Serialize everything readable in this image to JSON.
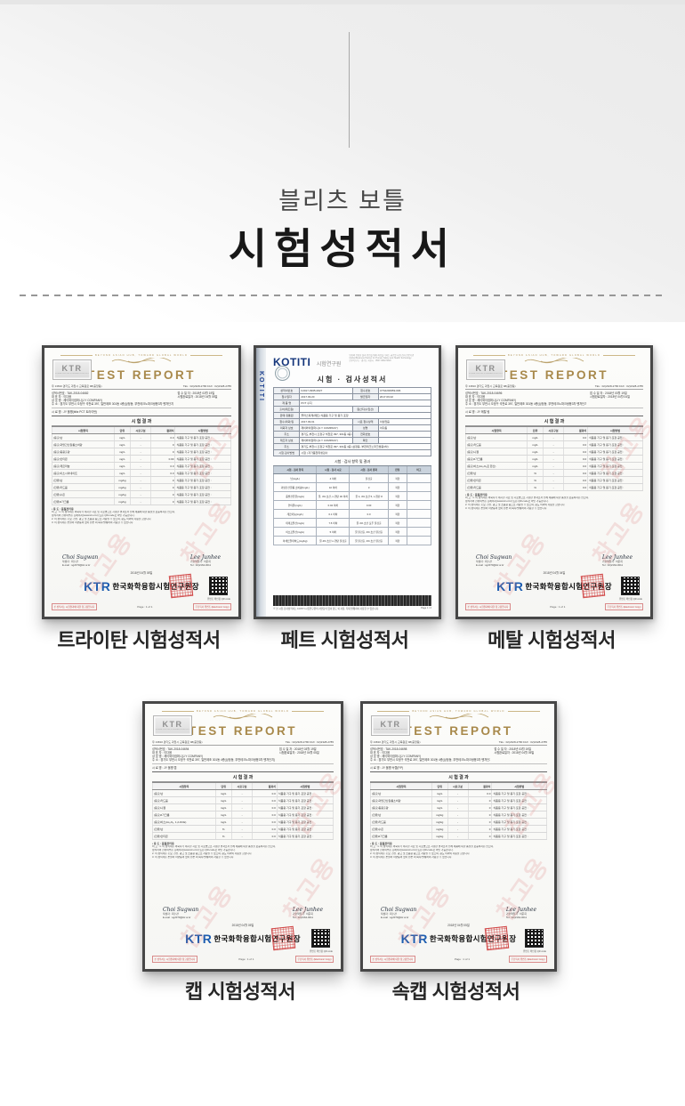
{
  "hero": {
    "subtitle": "블리츠 보틀",
    "title": "시험성적서"
  },
  "captions": {
    "tritan": "트라이탄 시험성적서",
    "pet": "페트 시험성적서",
    "metal": "메탈 시험성적서",
    "cap": "캡 시험성적서",
    "inner": "속캡 시험성적서"
  },
  "icons": {
    "qr": "qr-code",
    "red_stamp": "red-square-seal",
    "round_seal": "round-institute-seal"
  },
  "colors": {
    "gold": "#a8894b",
    "ktr_blue": "#1d5db0",
    "kotiti_navy": "#15367b",
    "stamp_red": "#ce3838",
    "watermark_red": "rgba(222,120,120,0.20)"
  },
  "ktr_common": {
    "tagline": "BEYOND ASIAN HUB, TOWARD GLOBAL WORLD",
    "logo": "KTR",
    "logo_sub": "KOREA TESTING & RESEARCH INSTITUTE",
    "report_title": "TEST REPORT",
    "watermark": "참고용",
    "table_title": "시 험 결 과",
    "columns": [
      "시험항목",
      "단위",
      "시료구분",
      "결과치",
      "시험방법"
    ],
    "notes_title": "• 용 도 : 품질관리용",
    "notes": [
      "비 고 : 1. 이 성적서는 의뢰자가 제시한 시료 및 시료명으로 시험한 결과로서 전체 제품에 대한 품질을 보증하지는 않으며,",
      "성적서의 진위여부는 홈페이지(www.ktr.or.kr) 또는 QR-code로 확인 가능합니다.",
      "2. 이 성적서는 홍보, 선전, 광고 및 소송용 등으로 사용될 수 없으며, 용도 이외의 사용을 금합니다.",
      "3. 이 성적서는 본원의 서면동의 없이 원본 외 복사/발췌하여 사용할 수 없습니다."
    ],
    "sign_left_script": "Choi Sugwan",
    "sign_left_name": "작성자 : 최수관",
    "sign_left_mail": "E-mail : sg2070@ktr.or.kr",
    "sign_right_script": "Lee Junhee",
    "sign_right_name": "기술책임자 : 이준희",
    "sign_right_tel": "Tel : 02)2164-0011",
    "org_logo": "KTR",
    "org_title": "한국화학융합시험연구원장",
    "qr_caption": "위변조 확인용  QR code",
    "footer_left": "본 성적서는 시험결과에 대한 참고용입니다",
    "footer_right": "무단복사 위변조 (Electronic Copy)",
    "page": "Page : 1 of 1"
  },
  "certs": {
    "tritan": {
      "addr": "우 13810 경기도 과천시 교육원로 98(중앙동)",
      "tel": "TEL : 02)2328-2780   FAX : 02)2328-2785",
      "fields_left": [
        "성적서번호 : TAK-2018-04682",
        "대 표 자 : 이다음",
        "상 호 명 : 제이와이컴퍼니(J.Y COMPANY)",
        "주       소 : 경기도 부천시 오정구 석천로 397, 일반제조 301동 4층(삼정동, 부천테크노파크쌍용3차 벤처단지)"
      ],
      "fields_right": [
        "접 수 일 자 : 2018년 03월 19일",
        "시험완료일자 : 2018년 04월 05일"
      ],
      "sample": "시 료 명 : JY 물병(blitz PCT 트라이탄)",
      "date": "2018년 04월 05일",
      "rows": [
        [
          "(용출)납",
          "mg/L",
          "-",
          "0.0",
          "식품용 기구 및 용기·포장 공전 :"
        ],
        [
          "(용출)과망간산칼륨소비량",
          "mg/L",
          "-",
          "0",
          "식품용 기구 및 용기·포장 공전 :"
        ],
        [
          "(용출)총용출량",
          "mg/L",
          "-",
          "0",
          "식품용 기구 및 용기·포장 공전 :"
        ],
        [
          "(용출)안티몬",
          "mg/L",
          "-",
          "0.00",
          "식품용 기구 및 용기·포장 공전 :"
        ],
        [
          "(용출)게르마늄",
          "mg/L",
          "-",
          "0.0",
          "식품용 기구 및 용기·포장 공전 :"
        ],
        [
          "(용출)이소시아네이트",
          "mg/L",
          "-",
          "0.0",
          "식품용 기구 및 용기·포장 공전 :"
        ],
        [
          "(잔류)납",
          "mg/kg",
          "-",
          "0",
          "식품용 기구 및 용기·포장 공전 :"
        ],
        [
          "(잔류)카드뮴",
          "mg/kg",
          "-",
          "0",
          "식품용 기구 및 용기·포장 공전 :"
        ],
        [
          "(잔류)수은",
          "mg/kg",
          "-",
          "0",
          "식품용 기구 및 용기·포장 공전 :"
        ],
        [
          "(잔류)6가크롬",
          "mg/kg",
          "-",
          "0",
          "식품용 기구 및 용기·포장 공전 :"
        ]
      ]
    },
    "metal": {
      "addr": "우 13810 경기도 과천시 교육원로 98(중앙동)",
      "tel": "TEL : 02)2328-2780   FAX : 02)2328-2785",
      "fields_left": [
        "성적서번호 : TAK-2018-04696",
        "대 표 자 : 이다음",
        "상 호 명 : 제이와이컴퍼니(J.Y COMPANY)",
        "주       소 : 경기도 부천시 오정구 석천로 397, 일반제조 301동 4층(삼정동, 부천테크노파크쌍용3차 벤처단지)"
      ],
      "fields_right": [
        "접 수 일 자 : 2018년 03월 19일",
        "시험완료일자 : 2018년 04월 04일"
      ],
      "sample": "시 료 명 : JY 메탈 링",
      "date": "2018년 04월 04일",
      "rows": [
        [
          "(용출)납",
          "mg/L",
          "-",
          "0.0",
          "식품용 기구 및 용기·포장 공전 :"
        ],
        [
          "(용출)카드뮴",
          "mg/L",
          "-",
          "0.0",
          "식품용 기구 및 용기·포장 공전 :"
        ],
        [
          "(용출)니켈",
          "mg/L",
          "-",
          "0.0",
          "식품용 기구 및 용기·포장 공전 :"
        ],
        [
          "(용출)6가크롬",
          "mg/L",
          "-",
          "0.0",
          "식품용 기구 및 용기·포장 공전 :"
        ],
        [
          "(용출)비소(As₂O₃로 환산)",
          "mg/L",
          "-",
          "0.0",
          "식품용 기구 및 용기·포장 공전 :"
        ],
        [
          "(잔류)납",
          "%",
          "-",
          "0.0",
          "식품용 기구 및 용기·포장 공전 :"
        ],
        [
          "(잔류)안티몬",
          "%",
          "-",
          "0.0",
          "식품용 기구 및 용기·포장 공전 :"
        ],
        [
          "(잔류)카드뮴",
          "%",
          "-",
          "0.0",
          "식품용 기구 및 용기·포장 공전 :"
        ]
      ]
    },
    "cap": {
      "addr": "우 13810 경기도 과천시 교육원로 98(중앙동)",
      "tel": "TEL : 02)2328-2780   FAX : 02)2328-2785",
      "fields_left": [
        "성적서번호 : TAK-2018-04694",
        "대 표 자 : 이다음",
        "상 호 명 : 제이와이컴퍼니(J.Y COMPANY)",
        "주       소 : 경기도 부천시 오정구 석천로 397, 일반제조 301동 4층(삼정동, 부천테크노파크쌍용3차 벤처단지)"
      ],
      "fields_right": [
        "접 수 일 자 : 2018년 03월 19일",
        "시험완료일자 : 2018년 04월 05일"
      ],
      "sample": "시 료 명 : JY 물병 캡",
      "date": "2018년 04월 05일",
      "rows": [
        [
          "(용출)납",
          "mg/L",
          "-",
          "0.0",
          "식품용 기구 및 용기·포장 공전 :"
        ],
        [
          "(용출)카드뮴",
          "mg/L",
          "-",
          "0.0",
          "식품용 기구 및 용기·포장 공전 :"
        ],
        [
          "(용출)니켈",
          "mg/L",
          "-",
          "0.0",
          "식품용 기구 및 용기·포장 공전 :"
        ],
        [
          "(용출)6가크롬",
          "mg/L",
          "-",
          "0.0",
          "식품용 기구 및 용기·포장 공전 :"
        ],
        [
          "(용출)비소(As₂O₃, 1,2-DCE)",
          "mg/L",
          "-",
          "0.0",
          "식품용 기구 및 용기·포장 공전 :"
        ],
        [
          "(잔류)납",
          "%",
          "-",
          "0.0",
          "식품용 기구 및 용기·포장 공전 :"
        ],
        [
          "(잔류)안티몬",
          "%",
          "-",
          "0.0",
          "식품용 기구 및 용기·포장 공전 :"
        ]
      ]
    },
    "inner": {
      "addr": "우 13810 경기도 과천시 교육원로 98(중앙동)",
      "tel": "TEL : 02)2328-2780   FAX : 02)2328-2785",
      "fields_left": [
        "성적서번호 : TAK-2018-04698",
        "대 표 자 : 이다음",
        "상 호 명 : 제이와이컴퍼니(J.Y COMPANY)",
        "주       소 : 경기도 부천시 오정구 석천로 397, 일반제조 301동 4층(삼정동, 부천테크노파크쌍용3차 벤처단지)"
      ],
      "fields_right": [
        "접 수 일 자 : 2018년 03월 19일",
        "시험완료일자 : 2018년 04월 05일"
      ],
      "sample": "시 료 명 : JY 물병 속캡(P.P)",
      "date": "2018년 04월 05일",
      "rows": [
        [
          "(용출)납",
          "mg/L",
          "-",
          "0.0",
          "식품용 기구 및 용기·포장 공전 :"
        ],
        [
          "(용출)과망간산칼륨소비량",
          "mg/L",
          "-",
          "0",
          "식품용 기구 및 용기·포장 공전 :"
        ],
        [
          "(용출)총용출량",
          "mg/L",
          "-",
          "0",
          "식품용 기구 및 용기·포장 공전 :"
        ],
        [
          "(잔류)납",
          "mg/kg",
          "-",
          "0",
          "식품용 기구 및 용기·포장 공전 :"
        ],
        [
          "(잔류)카드뮴",
          "mg/kg",
          "-",
          "0",
          "식품용 기구 및 용기·포장 공전 :"
        ],
        [
          "(잔류)수은",
          "mg/kg",
          "-",
          "0",
          "식품용 기구 및 용기·포장 공전 :"
        ],
        [
          "(잔류)6가크롬",
          "mg/kg",
          "-",
          "0",
          "식품용 기구 및 용기·포장 공전 :"
        ]
      ]
    }
  },
  "kotiti": {
    "brand": "KOTITI",
    "brand_suffix": "시험연구원",
    "head_note": [
      "인류의 건강한 삶과 안전을 위해 최선을 다하는 글로벌 시험·검사 전문기관",
      "Global Business Partner for Human Safety and Health Technology",
      "본부/연구소 : 경기도 과천시  ·  0507-3802-5620"
    ],
    "title": "시험 · 검사성적서",
    "info_rows": [
      [
        "성적서번호",
        "F2017-0935-0027",
        "접수번호",
        "CT64200959-006"
      ],
      [
        "접수일자",
        "2017.09.20",
        "발급일자",
        "2017.09.02"
      ],
      [
        "제 품 명",
        "PCT 수지"
      ],
      [
        "출처(제조원)",
        "",
        "원산지(수입선)",
        ""
      ],
      [
        "판매·유통원",
        "플라스틱제(페트) 식품용 기구 및 용기·포장"
      ],
      [
        "접수(의뢰)일",
        "2017.09.01",
        "시료 접수상태",
        "이상없음"
      ],
      [
        "의뢰자 상호",
        "제이와이컴퍼니(J.Y COMPANY)",
        "성명",
        "이다음"
      ],
      [
        "주소",
        "경기도 부천시 오정구 석천로 397, 301동 4층 (삼정동)",
        "전화번호",
        ""
      ],
      [
        "제조자 상호",
        "제이와이컴퍼니(J.Y COMPANY)",
        "확인",
        ""
      ],
      [
        "주소",
        "경기도 부천시 오정구 석천로 397, 301동 4층 (삼정동, 부천테크노파크쌍용3차)"
      ],
      [
        "시험·검사방법",
        "시험 | 자가품질위생검사"
      ]
    ],
    "results_title": "시험 · 검사 항목 및 결과",
    "columns": [
      "시험 · 검사 항목",
      "시험 · 검사 시료",
      "시험 · 검사 결과",
      "판정",
      "비고"
    ],
    "rows": [
      [
        "납(mg/L)",
        "4 이하",
        "불검출",
        "적합",
        ""
      ],
      [
        "과망간산칼륨 소비량(mg/L)",
        "10 이하",
        "3",
        "적합",
        ""
      ],
      [
        "증발잔류물(mg/L)",
        "물, 4% 초산, n-헵탄 30 이하",
        "물 4, 4% 초산 5, n-헵탄 8",
        "적합",
        ""
      ],
      [
        "안티몬(mg/L)",
        "0.04 이하",
        "0.00",
        "적합",
        ""
      ],
      [
        "게르마늄(mg/L)",
        "0.1 이하",
        "0.0",
        "적합",
        ""
      ],
      [
        "테레프탈산(mg/L)",
        "7.5 이하",
        "물·4% 초산 모두 불검출",
        "적합",
        ""
      ],
      [
        "이소프탈산(mg/L)",
        "5 이하",
        "물 불검출, 4% 초산 불검출",
        "적합",
        ""
      ],
      [
        "아세트알데히드(mg/kg)",
        "물·4% 초산·n-헵탄 불검출",
        "물 불검출, 4% 초산 불검출",
        "적합",
        ""
      ]
    ],
    "bottom_note": "※ 본 시험·검사성적서는 KOTITI 시험연구원의 서면동의 없이 용도 외 사용, 복제·발췌하여 사용할 수 없습니다.",
    "page": "Page 1 / 2"
  }
}
